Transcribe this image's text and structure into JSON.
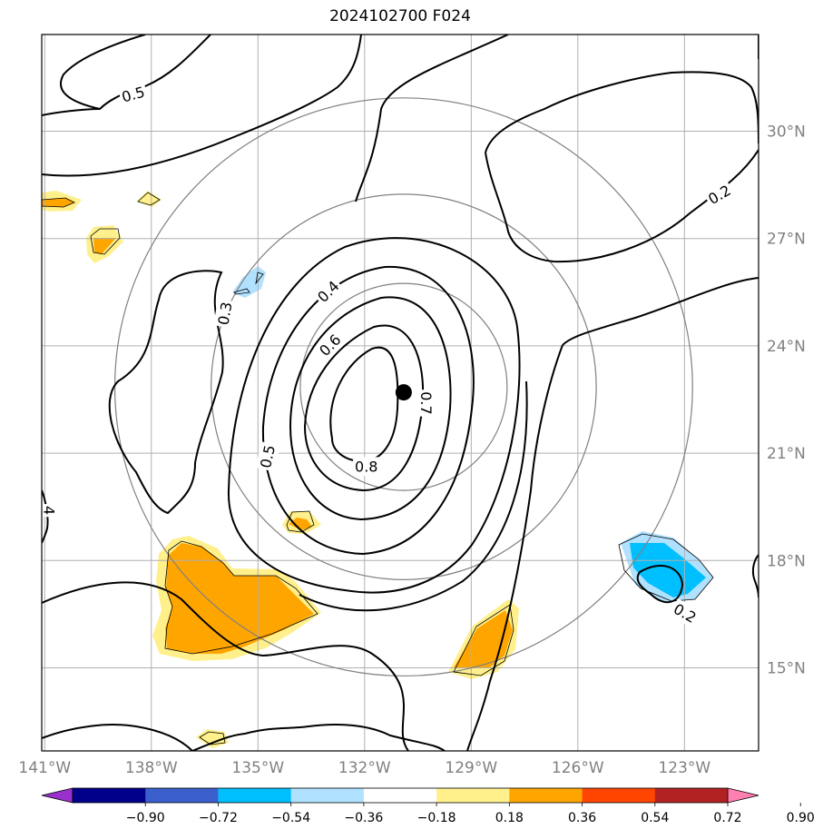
{
  "title": "2024102700 F024",
  "chart_data": {
    "type": "contour map",
    "domain": {
      "lon": [
        -141,
        -121
      ],
      "lat": [
        13,
        33
      ]
    },
    "lon_ticks": [
      {
        "value": -141,
        "label": "141°W"
      },
      {
        "value": -138,
        "label": "138°W"
      },
      {
        "value": -135,
        "label": "135°W"
      },
      {
        "value": -132,
        "label": "132°W"
      },
      {
        "value": -129,
        "label": "129°W"
      },
      {
        "value": -126,
        "label": "126°W"
      },
      {
        "value": -123,
        "label": "123°W"
      }
    ],
    "lat_ticks": [
      {
        "value": 15,
        "label": "15°N"
      },
      {
        "value": 18,
        "label": "18°N"
      },
      {
        "value": 21,
        "label": "21°N"
      },
      {
        "value": 24,
        "label": "24°N"
      },
      {
        "value": 27,
        "label": "27°N"
      },
      {
        "value": 30,
        "label": "30°N"
      }
    ],
    "grid": true,
    "center_marker": {
      "lon": -130.9,
      "lat": 22.7
    },
    "range_rings_deg": [
      2.9,
      5.4,
      8.1
    ],
    "contour_labels": [
      {
        "text": "0.8",
        "lon": -131.95,
        "lat": 20.6
      },
      {
        "text": "0.7",
        "lon": -130.3,
        "lat": 22.4,
        "rotate": 90
      },
      {
        "text": "0.6",
        "lon": -132.95,
        "lat": 24.0,
        "rotate": -45
      },
      {
        "text": "0.5",
        "lon": -134.7,
        "lat": 20.9,
        "rotate": -78
      },
      {
        "text": "0.4",
        "lon": -133.0,
        "lat": 25.5,
        "rotate": -45
      },
      {
        "text": "0.3",
        "lon": -135.9,
        "lat": 24.9,
        "rotate": -80
      },
      {
        "text": "0.5",
        "lon": -138.5,
        "lat": 31.0,
        "rotate": -15
      },
      {
        "text": "0.2",
        "lon": -122.0,
        "lat": 28.2,
        "rotate": -30
      },
      {
        "text": "0.2",
        "lon": -123.0,
        "lat": 16.5,
        "rotate": 30
      },
      {
        "text": "4",
        "lon": -140.9,
        "lat": 19.4,
        "rotate": 90
      }
    ],
    "colorbar": {
      "colors": [
        "#9932cc",
        "#00008b",
        "#3a5fcd",
        "#00bfff",
        "#b0e2ff",
        "#ffffff",
        "#fff08c",
        "#ffa500",
        "#ff4500",
        "#b22222",
        "#ff7fb0"
      ],
      "tick_labels": [
        "−0.90",
        "−0.72",
        "−0.54",
        "−0.36",
        "−0.18",
        "0.18",
        "0.36",
        "0.54",
        "0.72",
        "0.90"
      ],
      "extend": "both"
    }
  }
}
